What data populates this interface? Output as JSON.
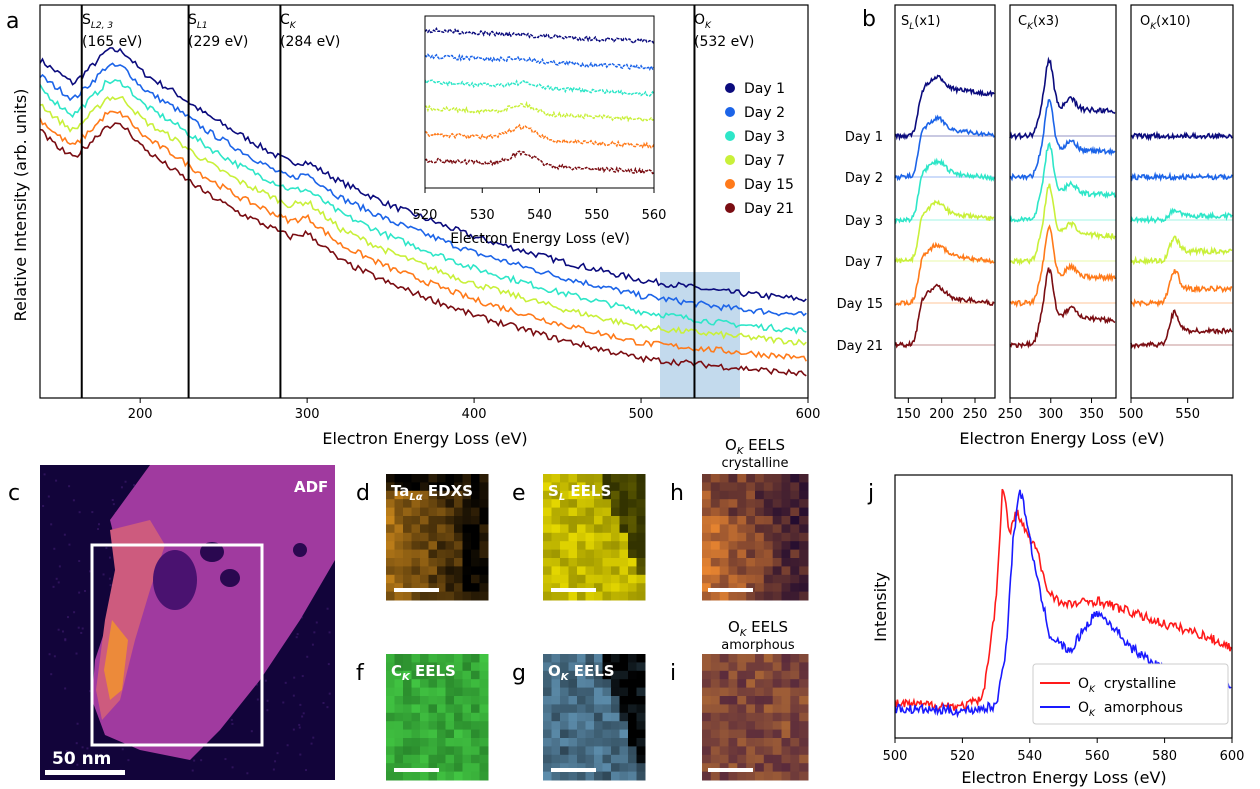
{
  "panels": {
    "a": {
      "letter": "a"
    },
    "b": {
      "letter": "b"
    },
    "c": {
      "letter": "c"
    },
    "d": {
      "letter": "d"
    },
    "e": {
      "letter": "e"
    },
    "f": {
      "letter": "f"
    },
    "g": {
      "letter": "g"
    },
    "h": {
      "letter": "h"
    },
    "i": {
      "letter": "i"
    },
    "j": {
      "letter": "j"
    }
  },
  "colors": {
    "day1": "#0b0b7d",
    "day2": "#1c64e8",
    "day3": "#2ee6c8",
    "day7": "#c9f03a",
    "day15": "#ff7a1a",
    "day21": "#7a0d12",
    "red": "#ff1a1a",
    "blue": "#1a1aff",
    "highlight": "#b9d3ea"
  },
  "chart_data": [
    {
      "id": "a-main",
      "type": "line",
      "xlabel": "Electron Energy Loss (eV)",
      "ylabel": "Relative Intensity (arb. units)",
      "xlim": [
        140,
        600
      ],
      "xticks": [
        "200",
        "300",
        "400",
        "500",
        "600"
      ],
      "legend_placement": "right, inside",
      "series": [
        {
          "name": "Day 1",
          "x": [
            140,
            150,
            160,
            170,
            180,
            190,
            200,
            220,
            240,
            260,
            280,
            290,
            300,
            320,
            350,
            400,
            450,
            500,
            550,
            600
          ],
          "y": [
            0.86,
            0.83,
            0.8,
            0.84,
            0.88,
            0.86,
            0.83,
            0.78,
            0.72,
            0.67,
            0.62,
            0.6,
            0.6,
            0.55,
            0.49,
            0.41,
            0.35,
            0.3,
            0.27,
            0.25
          ]
        },
        {
          "name": "Day 2",
          "x": [
            140,
            150,
            160,
            170,
            180,
            190,
            200,
            220,
            240,
            260,
            280,
            290,
            300,
            320,
            350,
            400,
            450,
            500,
            550,
            600
          ],
          "y": [
            0.82,
            0.79,
            0.76,
            0.8,
            0.84,
            0.82,
            0.79,
            0.74,
            0.68,
            0.63,
            0.58,
            0.56,
            0.57,
            0.51,
            0.45,
            0.37,
            0.31,
            0.26,
            0.23,
            0.21
          ]
        },
        {
          "name": "Day 3",
          "x": [
            140,
            150,
            160,
            170,
            180,
            190,
            200,
            220,
            240,
            260,
            280,
            290,
            300,
            320,
            350,
            400,
            450,
            500,
            550,
            600
          ],
          "y": [
            0.79,
            0.75,
            0.72,
            0.76,
            0.8,
            0.78,
            0.75,
            0.7,
            0.64,
            0.59,
            0.55,
            0.53,
            0.53,
            0.47,
            0.41,
            0.33,
            0.27,
            0.22,
            0.19,
            0.17
          ]
        },
        {
          "name": "Day 7",
          "x": [
            140,
            150,
            160,
            170,
            180,
            190,
            200,
            220,
            240,
            260,
            280,
            290,
            300,
            320,
            350,
            400,
            450,
            500,
            550,
            600
          ],
          "y": [
            0.75,
            0.71,
            0.68,
            0.72,
            0.76,
            0.74,
            0.71,
            0.66,
            0.6,
            0.55,
            0.51,
            0.49,
            0.5,
            0.43,
            0.37,
            0.29,
            0.23,
            0.18,
            0.16,
            0.14
          ]
        },
        {
          "name": "Day 15",
          "x": [
            140,
            150,
            160,
            170,
            180,
            190,
            200,
            220,
            240,
            260,
            280,
            290,
            300,
            320,
            350,
            400,
            450,
            500,
            550,
            600
          ],
          "y": [
            0.71,
            0.67,
            0.64,
            0.68,
            0.72,
            0.7,
            0.67,
            0.62,
            0.56,
            0.51,
            0.47,
            0.45,
            0.46,
            0.39,
            0.33,
            0.25,
            0.19,
            0.14,
            0.12,
            0.1
          ]
        },
        {
          "name": "Day 21",
          "x": [
            140,
            150,
            160,
            170,
            180,
            190,
            200,
            220,
            240,
            260,
            280,
            290,
            300,
            320,
            350,
            400,
            450,
            500,
            550,
            600
          ],
          "y": [
            0.68,
            0.64,
            0.61,
            0.65,
            0.69,
            0.67,
            0.64,
            0.58,
            0.52,
            0.47,
            0.43,
            0.41,
            0.42,
            0.35,
            0.29,
            0.21,
            0.15,
            0.1,
            0.08,
            0.06
          ]
        }
      ],
      "vlines": [
        {
          "x": 165,
          "label": "S",
          "sub": "L2, 3",
          "energy": "(165 eV)"
        },
        {
          "x": 229,
          "label": "S",
          "sub": "L1",
          "energy": "(229 eV)"
        },
        {
          "x": 284,
          "label": "C",
          "sub": "K",
          "energy": "(284 eV)"
        },
        {
          "x": 532,
          "label": "O",
          "sub": "K",
          "energy": "(532 eV)"
        }
      ],
      "highlight_x": [
        520,
        560
      ]
    },
    {
      "id": "a-inset",
      "type": "line",
      "xlabel": "Electron Energy Loss (eV)",
      "xlim": [
        520,
        560
      ],
      "xticks": [
        "520",
        "530",
        "540",
        "550",
        "560"
      ],
      "series_names": [
        "Day 1",
        "Day 2",
        "Day 3",
        "Day 7",
        "Day 15",
        "Day 21"
      ],
      "peak_eV": 537
    },
    {
      "id": "b",
      "type": "line",
      "xlabel": "Electron Energy Loss (eV)",
      "subpanels": [
        {
          "title": "S",
          "sub": "L",
          "scale": "(x1)",
          "xlim": [
            130,
            280
          ],
          "xticks": [
            "150",
            "200",
            "250"
          ],
          "edge": 165
        },
        {
          "title": "C",
          "sub": "K",
          "scale": "(x3)",
          "xlim": [
            250,
            380
          ],
          "xticks": [
            "250",
            "300",
            "350"
          ],
          "edge": 284
        },
        {
          "title": "O",
          "sub": "K",
          "scale": "(x10)",
          "xlim": [
            500,
            590
          ],
          "xticks": [
            "500",
            "550"
          ],
          "edge": 532
        }
      ],
      "row_labels": [
        "Day 1",
        "Day 2",
        "Day 3",
        "Day 7",
        "Day 15",
        "Day 21"
      ]
    },
    {
      "id": "j",
      "type": "line",
      "xlabel": "Electron Energy Loss (eV)",
      "ylabel": "Intensity",
      "xlim": [
        500,
        600
      ],
      "xticks": [
        "500",
        "520",
        "540",
        "560",
        "580",
        "600"
      ],
      "legend_placement": "bottom-right",
      "series": [
        {
          "name": "O",
          "sub": "K",
          "label": "crystalline",
          "x": [
            500,
            520,
            526,
            530,
            532,
            534,
            536,
            538,
            540,
            542,
            545,
            550,
            560,
            570,
            580,
            590,
            600
          ],
          "y": [
            0.06,
            0.05,
            0.08,
            0.5,
            1.0,
            0.78,
            0.88,
            0.82,
            0.76,
            0.72,
            0.55,
            0.48,
            0.5,
            0.45,
            0.4,
            0.36,
            0.3
          ]
        },
        {
          "name": "O",
          "sub": "K",
          "label": "amorphous",
          "x": [
            500,
            520,
            530,
            533,
            535,
            537,
            539,
            542,
            546,
            552,
            556,
            560,
            564,
            570,
            580,
            590,
            600
          ],
          "y": [
            0.04,
            0.03,
            0.05,
            0.3,
            0.75,
            0.98,
            0.85,
            0.6,
            0.35,
            0.28,
            0.38,
            0.45,
            0.4,
            0.3,
            0.2,
            0.17,
            0.14
          ]
        }
      ]
    }
  ],
  "day_labels": [
    "Day 1",
    "Day 2",
    "Day 3",
    "Day 7",
    "Day 15",
    "Day 21"
  ],
  "axis": {
    "a_xlabel": "Electron Energy Loss (eV)",
    "a_ylabel": "Relative Intensity (arb. units)",
    "inset_xlabel": "Electron Energy Loss (eV)",
    "b_xlabel": "Electron Energy Loss (eV)",
    "j_xlabel": "Electron Energy Loss (eV)",
    "j_ylabel": "Intensity"
  },
  "ticks": {
    "a": [
      "200",
      "300",
      "400",
      "500",
      "600"
    ],
    "inset": [
      "520",
      "530",
      "540",
      "550",
      "560"
    ],
    "b1": [
      "150",
      "200",
      "250"
    ],
    "b2": [
      "250",
      "300",
      "350"
    ],
    "b3": [
      "500",
      "550"
    ],
    "j": [
      "500",
      "520",
      "540",
      "560",
      "580",
      "600"
    ]
  },
  "edges": {
    "s23": {
      "main": "S",
      "sub": "L2, 3",
      "energy": "(165 eV)"
    },
    "sl1": {
      "main": "S",
      "sub": "L1",
      "energy": "(229 eV)"
    },
    "ck": {
      "main": "C",
      "sub": "K",
      "energy": "(284 eV)"
    },
    "ok": {
      "main": "O",
      "sub": "K",
      "energy": "(532 eV)"
    }
  },
  "b_titles": [
    {
      "main": "S",
      "sub": "L",
      "scale": "(x1)"
    },
    {
      "main": "C",
      "sub": "K",
      "scale": "(x3)"
    },
    {
      "main": "O",
      "sub": "K",
      "scale": "(x10)"
    }
  ],
  "maps": {
    "adf": {
      "label": "ADF",
      "scalebar": "50 nm"
    },
    "d": {
      "main": "Ta",
      "sub": "Lα",
      "rest": " EDXS"
    },
    "e": {
      "main": "S",
      "sub": "L",
      "rest": " EELS"
    },
    "f": {
      "main": "C",
      "sub": "K",
      "rest": " EELS"
    },
    "g": {
      "main": "O",
      "sub": "K",
      "rest": " EELS"
    },
    "h": {
      "main": "O",
      "sub": "K",
      "rest": " EELS",
      "note": "crystalline"
    },
    "i": {
      "main": "O",
      "sub": "K",
      "rest": " EELS",
      "note": "amorphous"
    }
  },
  "legend_j": [
    {
      "main": "O",
      "sub": "K",
      "rest": "  crystalline"
    },
    {
      "main": "O",
      "sub": "K",
      "rest": "  amorphous"
    }
  ]
}
